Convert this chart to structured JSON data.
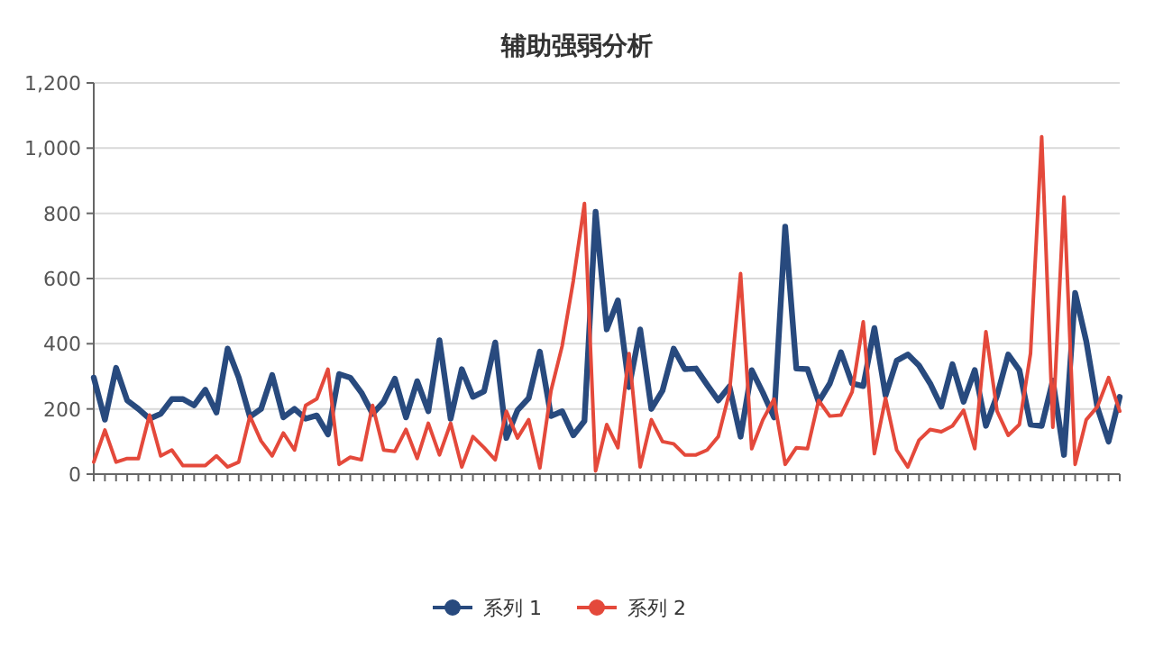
{
  "chart_data": {
    "type": "line",
    "title": "辅助强弱分析",
    "categories": [
      null,
      null,
      null,
      null,
      null,
      null,
      null,
      null,
      null,
      null,
      null,
      null,
      null,
      null,
      null,
      null,
      null,
      null,
      null,
      null,
      null,
      null,
      null,
      null,
      null,
      null,
      null,
      null,
      null,
      null,
      null,
      null,
      null,
      null,
      null,
      null,
      null,
      null,
      null,
      null,
      null,
      null,
      null,
      null,
      null,
      null,
      null,
      null,
      null,
      null,
      null,
      null,
      null,
      null,
      null,
      null,
      null,
      null,
      null,
      null,
      null,
      null,
      null,
      null,
      null,
      null,
      null,
      null,
      null,
      null,
      null,
      null,
      null,
      null,
      null,
      null,
      null,
      null,
      null,
      null,
      null,
      null,
      null,
      null,
      null,
      null,
      null,
      null,
      null,
      null,
      null,
      null,
      null
    ],
    "series": [
      {
        "name": "系列 1",
        "color": "#284a7e",
        "values": [
          296,
          167,
          326,
          226,
          200,
          170,
          185,
          230,
          230,
          211,
          259,
          189,
          385,
          296,
          176,
          200,
          304,
          174,
          200,
          170,
          180,
          122,
          307,
          296,
          250,
          185,
          222,
          293,
          174,
          285,
          193,
          411,
          170,
          322,
          237,
          254,
          404,
          111,
          196,
          233,
          376,
          178,
          193,
          119,
          163,
          805,
          444,
          533,
          267,
          444,
          200,
          256,
          385,
          322,
          324,
          274,
          226,
          269,
          115,
          319,
          250,
          174,
          759,
          324,
          322,
          222,
          278,
          374,
          278,
          270,
          448,
          241,
          348,
          367,
          333,
          278,
          207,
          337,
          222,
          319,
          148,
          241,
          367,
          319,
          152,
          148,
          287,
          59,
          556,
          407,
          204,
          100,
          237
        ]
      },
      {
        "name": "系列 2",
        "color": "#e4493b",
        "values": [
          37,
          135,
          37,
          48,
          48,
          181,
          56,
          74,
          26,
          26,
          26,
          56,
          22,
          37,
          178,
          102,
          56,
          126,
          74,
          211,
          231,
          322,
          30,
          52,
          44,
          211,
          74,
          70,
          137,
          48,
          156,
          59,
          156,
          22,
          115,
          81,
          44,
          193,
          111,
          167,
          19,
          256,
          393,
          593,
          830,
          10,
          152,
          81,
          370,
          22,
          167,
          100,
          93,
          59,
          59,
          74,
          115,
          250,
          615,
          78,
          167,
          230,
          30,
          81,
          78,
          226,
          178,
          181,
          252,
          467,
          63,
          233,
          74,
          22,
          104,
          137,
          130,
          148,
          196,
          78,
          437,
          193,
          119,
          152,
          370,
          1035,
          144,
          850,
          30,
          167,
          207,
          296,
          193
        ]
      }
    ],
    "ylim": [
      0,
      1200
    ],
    "yticks": [
      0,
      200,
      400,
      600,
      800,
      {
        "value": 1000,
        "label": "1,000"
      },
      {
        "value": 1200,
        "label": "1,200"
      }
    ],
    "grid": "y",
    "legend": "bottom",
    "marker": "none"
  }
}
